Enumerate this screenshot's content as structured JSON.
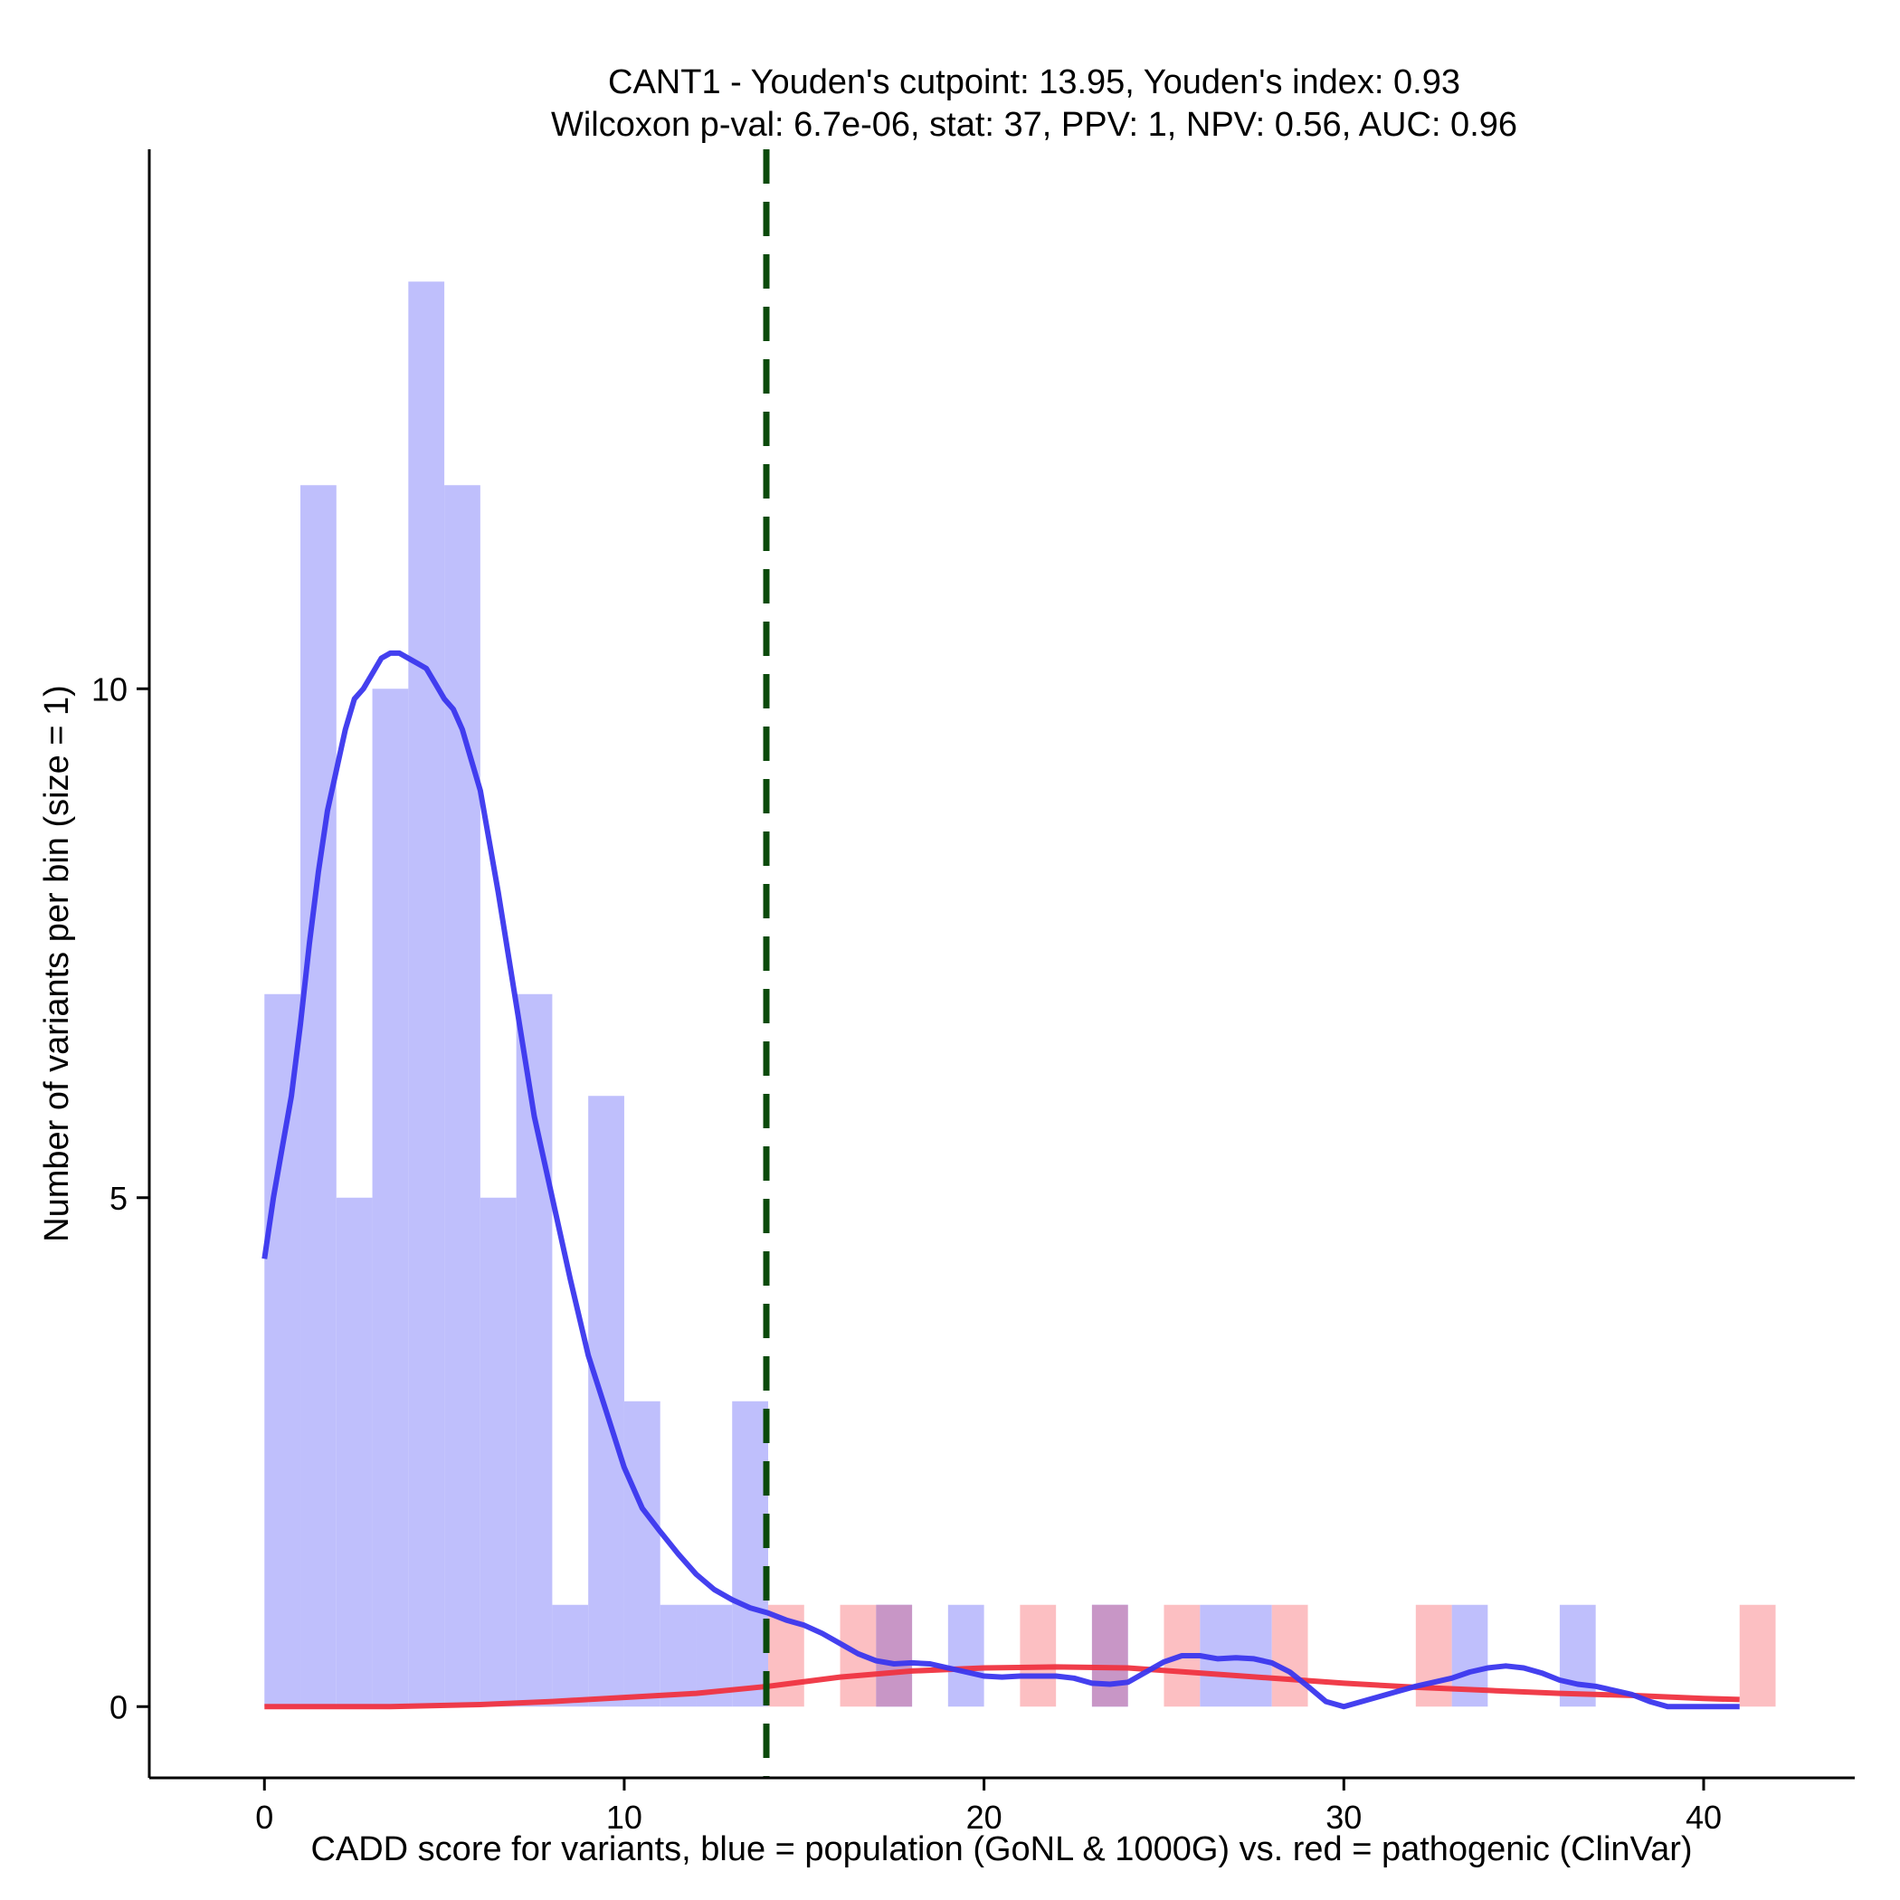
{
  "chart_data": {
    "type": "histogram",
    "title_line1": "CANT1 - Youden's cutpoint: 13.95, Youden's index: 0.93",
    "title_line2": "Wilcoxon p-val: 6.7e-06, stat: 37, PPV: 1, NPV: 0.56, AUC: 0.96",
    "xlabel": "CADD score for variants, blue = population (GoNL & 1000G) vs. red = pathogenic (ClinVar)",
    "ylabel": "Number of variants per bin (size = 1)",
    "xlim": [
      -3.2,
      44.2
    ],
    "ylim": [
      -0.7,
      15.3
    ],
    "xticks": [
      0,
      10,
      20,
      30,
      40
    ],
    "yticks": [
      0,
      5,
      10
    ],
    "cutpoint": 13.95,
    "bin_size": 1,
    "colors": {
      "population_bar": "#bfbffc",
      "pathogenic_bar": "#fcbfc2",
      "overlap_bar": "#c896c6",
      "population_line": "#3a36ee",
      "pathogenic_line": "#ef3340",
      "cutpoint_line": "#0b4a0b"
    },
    "series": [
      {
        "name": "population (GoNL & 1000G)",
        "bins": [
          {
            "x0": 0,
            "count": 7
          },
          {
            "x0": 1,
            "count": 12
          },
          {
            "x0": 2,
            "count": 5
          },
          {
            "x0": 3,
            "count": 10
          },
          {
            "x0": 4,
            "count": 14
          },
          {
            "x0": 5,
            "count": 12
          },
          {
            "x0": 6,
            "count": 5
          },
          {
            "x0": 7,
            "count": 7
          },
          {
            "x0": 8,
            "count": 1
          },
          {
            "x0": 9,
            "count": 6
          },
          {
            "x0": 10,
            "count": 3
          },
          {
            "x0": 11,
            "count": 1
          },
          {
            "x0": 12,
            "count": 1
          },
          {
            "x0": 13,
            "count": 3
          },
          {
            "x0": 17,
            "count": 1
          },
          {
            "x0": 19,
            "count": 1
          },
          {
            "x0": 23,
            "count": 1
          },
          {
            "x0": 26,
            "count": 1
          },
          {
            "x0": 27,
            "count": 1
          },
          {
            "x0": 33,
            "count": 1
          },
          {
            "x0": 36,
            "count": 1
          }
        ],
        "density_curve": [
          [
            0,
            4.4
          ],
          [
            0.25,
            5.0
          ],
          [
            0.5,
            5.5
          ],
          [
            0.75,
            6.0
          ],
          [
            1.0,
            6.7
          ],
          [
            1.25,
            7.5
          ],
          [
            1.5,
            8.2
          ],
          [
            1.75,
            8.8
          ],
          [
            2.0,
            9.2
          ],
          [
            2.25,
            9.6
          ],
          [
            2.5,
            9.9
          ],
          [
            2.75,
            10.0
          ],
          [
            3.0,
            10.15
          ],
          [
            3.25,
            10.3
          ],
          [
            3.5,
            10.35
          ],
          [
            3.75,
            10.35
          ],
          [
            4.0,
            10.3
          ],
          [
            4.25,
            10.25
          ],
          [
            4.5,
            10.2
          ],
          [
            4.75,
            10.05
          ],
          [
            5.0,
            9.9
          ],
          [
            5.25,
            9.8
          ],
          [
            5.5,
            9.6
          ],
          [
            5.75,
            9.3
          ],
          [
            6.0,
            9.0
          ],
          [
            6.5,
            8.0
          ],
          [
            7.0,
            6.9
          ],
          [
            7.5,
            5.8
          ],
          [
            8.0,
            5.0
          ],
          [
            8.5,
            4.2
          ],
          [
            9.0,
            3.45
          ],
          [
            9.5,
            2.9
          ],
          [
            10.0,
            2.35
          ],
          [
            10.5,
            1.95
          ],
          [
            11.0,
            1.72
          ],
          [
            11.5,
            1.5
          ],
          [
            12.0,
            1.3
          ],
          [
            12.5,
            1.15
          ],
          [
            13.0,
            1.05
          ],
          [
            13.5,
            0.97
          ],
          [
            14.0,
            0.92
          ],
          [
            14.5,
            0.85
          ],
          [
            15.0,
            0.8
          ],
          [
            15.5,
            0.72
          ],
          [
            16.0,
            0.62
          ],
          [
            16.5,
            0.52
          ],
          [
            17.0,
            0.45
          ],
          [
            17.5,
            0.42
          ],
          [
            18.0,
            0.43
          ],
          [
            18.5,
            0.42
          ],
          [
            19.0,
            0.38
          ],
          [
            19.5,
            0.34
          ],
          [
            20.0,
            0.3
          ],
          [
            20.5,
            0.29
          ],
          [
            21.0,
            0.3
          ],
          [
            21.5,
            0.3
          ],
          [
            22.0,
            0.3
          ],
          [
            22.5,
            0.28
          ],
          [
            23.0,
            0.23
          ],
          [
            23.5,
            0.22
          ],
          [
            24.0,
            0.24
          ],
          [
            24.5,
            0.34
          ],
          [
            25.0,
            0.44
          ],
          [
            25.5,
            0.5
          ],
          [
            26.0,
            0.5
          ],
          [
            26.5,
            0.47
          ],
          [
            27.0,
            0.48
          ],
          [
            27.5,
            0.47
          ],
          [
            28.0,
            0.43
          ],
          [
            28.5,
            0.34
          ],
          [
            29.0,
            0.2
          ],
          [
            29.5,
            0.05
          ],
          [
            30.0,
            0.0
          ],
          [
            30.5,
            0.05
          ],
          [
            31.0,
            0.1
          ],
          [
            31.5,
            0.15
          ],
          [
            32.0,
            0.2
          ],
          [
            32.5,
            0.24
          ],
          [
            33.0,
            0.28
          ],
          [
            33.5,
            0.34
          ],
          [
            34.0,
            0.38
          ],
          [
            34.5,
            0.4
          ],
          [
            35.0,
            0.38
          ],
          [
            35.5,
            0.33
          ],
          [
            36.0,
            0.26
          ],
          [
            36.5,
            0.22
          ],
          [
            37.0,
            0.2
          ],
          [
            37.5,
            0.16
          ],
          [
            38.0,
            0.12
          ],
          [
            38.5,
            0.05
          ],
          [
            39.0,
            0.0
          ],
          [
            40.0,
            0.0
          ],
          [
            41.0,
            0.0
          ]
        ]
      },
      {
        "name": "pathogenic (ClinVar)",
        "bins": [
          {
            "x0": 14,
            "count": 1
          },
          {
            "x0": 16,
            "count": 1
          },
          {
            "x0": 17,
            "count": 1
          },
          {
            "x0": 21,
            "count": 1
          },
          {
            "x0": 23,
            "count": 1
          },
          {
            "x0": 25,
            "count": 1
          },
          {
            "x0": 28,
            "count": 1
          },
          {
            "x0": 32,
            "count": 1
          },
          {
            "x0": 41,
            "count": 1
          }
        ],
        "density_curve": [
          [
            0,
            0.0
          ],
          [
            3.5,
            0.0
          ],
          [
            6.0,
            0.02
          ],
          [
            8.0,
            0.05
          ],
          [
            10.0,
            0.09
          ],
          [
            12.0,
            0.13
          ],
          [
            14.0,
            0.2
          ],
          [
            16.0,
            0.29
          ],
          [
            18.0,
            0.35
          ],
          [
            20.0,
            0.38
          ],
          [
            22.0,
            0.39
          ],
          [
            24.0,
            0.38
          ],
          [
            26.0,
            0.33
          ],
          [
            28.0,
            0.28
          ],
          [
            30.0,
            0.23
          ],
          [
            32.0,
            0.19
          ],
          [
            34.0,
            0.16
          ],
          [
            36.0,
            0.13
          ],
          [
            38.0,
            0.11
          ],
          [
            40.0,
            0.08
          ],
          [
            41.0,
            0.07
          ]
        ]
      }
    ]
  }
}
